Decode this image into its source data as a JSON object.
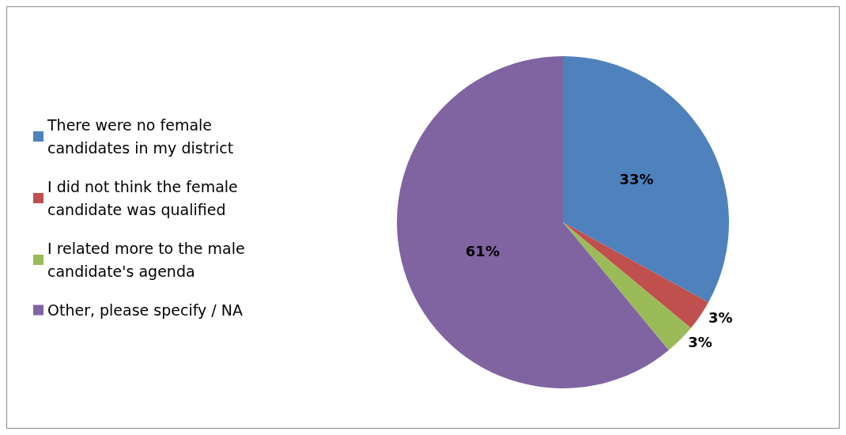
{
  "chart_data": {
    "type": "pie",
    "categories": [
      "There were no female candidates in my district",
      "I did not think the female candidate was qualified",
      "I related more to the male candidate's agenda",
      "Other, please specify / NA"
    ],
    "values": [
      33,
      3,
      3,
      61
    ],
    "colors": [
      "#4f81bd",
      "#c0504d",
      "#9bbb59",
      "#8064a2"
    ],
    "value_labels": [
      "33%",
      "3%",
      "3%",
      "61%"
    ],
    "legend": "left"
  }
}
